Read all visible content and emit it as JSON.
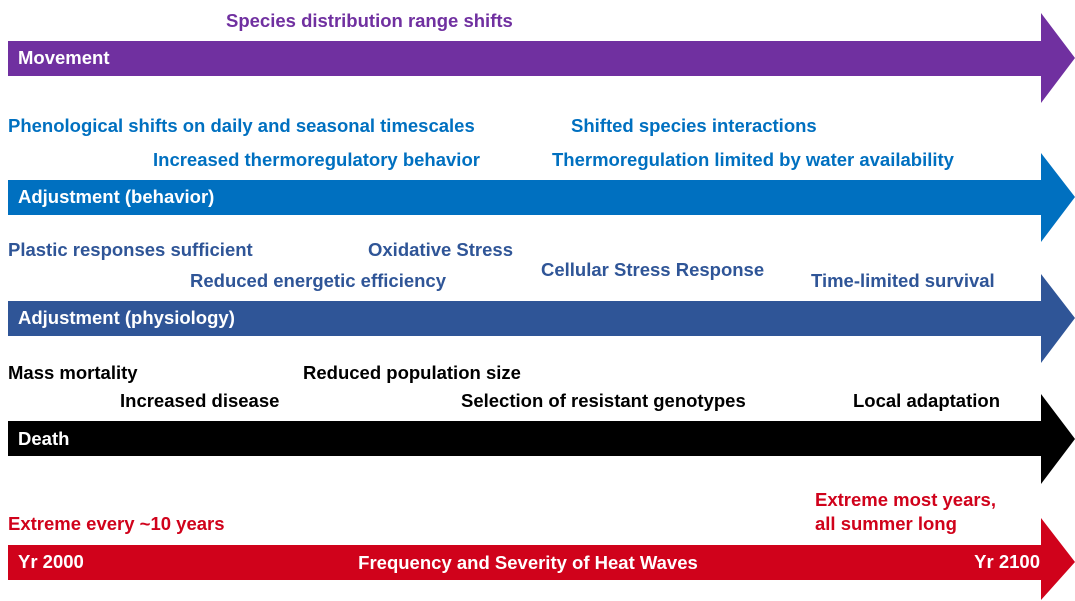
{
  "arrows": [
    {
      "label": "Movement",
      "annotations": [
        "Species distribution range shifts"
      ]
    },
    {
      "label": "Adjustment (behavior)",
      "annotations": [
        "Phenological shifts on daily and seasonal timescales",
        "Shifted species interactions",
        "Increased thermoregulatory behavior",
        "Thermoregulation limited by water availability"
      ]
    },
    {
      "label": "Adjustment (physiology)",
      "annotations": [
        "Plastic responses sufficient",
        "Oxidative Stress",
        "Reduced energetic efficiency",
        "Cellular Stress Response",
        "Time-limited survival"
      ]
    },
    {
      "label": "Death",
      "annotations": [
        "Mass mortality",
        "Reduced population size",
        "Increased disease",
        "Selection of resistant genotypes",
        "Local adaptation"
      ]
    }
  ],
  "heat_waves": {
    "start_label": "Yr 2000",
    "label": "Frequency and Severity of Heat Waves",
    "end_label": "Yr 2100",
    "annotations": [
      "Extreme every ~10 years",
      "Extreme most years,",
      "all summer long"
    ]
  }
}
